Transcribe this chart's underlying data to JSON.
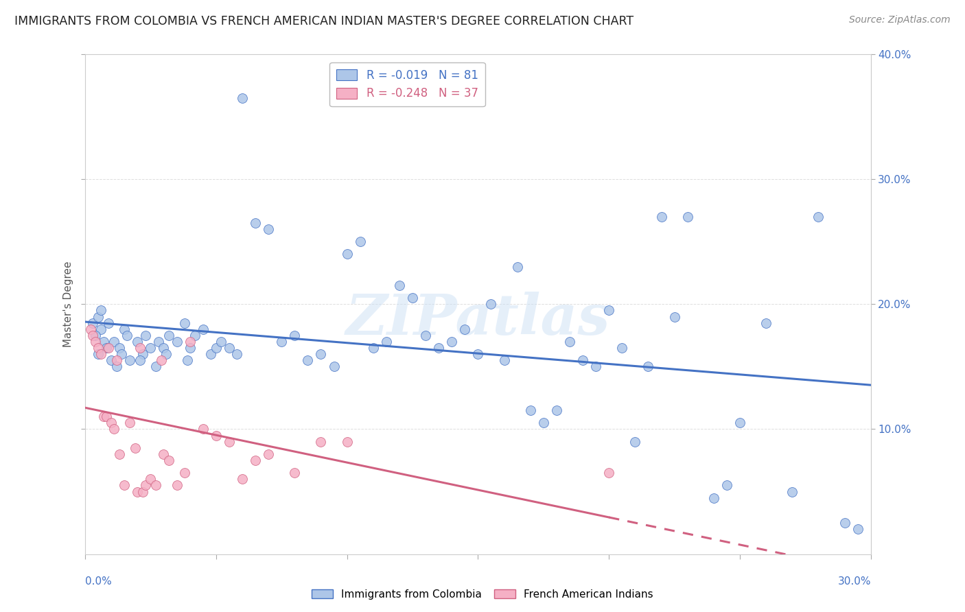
{
  "title": "IMMIGRANTS FROM COLOMBIA VS FRENCH AMERICAN INDIAN MASTER'S DEGREE CORRELATION CHART",
  "source": "Source: ZipAtlas.com",
  "ylabel": "Master's Degree",
  "xlim": [
    0.0,
    30.0
  ],
  "ylim": [
    0.0,
    40.0
  ],
  "yticks": [
    10.0,
    20.0,
    30.0,
    40.0
  ],
  "xticks": [
    0.0,
    5.0,
    10.0,
    15.0,
    20.0,
    25.0,
    30.0
  ],
  "watermark": "ZIPatlas",
  "legend1_label": "Immigrants from Colombia",
  "legend2_label": "French American Indians",
  "r1": -0.019,
  "n1": 81,
  "r2": -0.248,
  "n2": 37,
  "blue_fill": "#adc6e8",
  "pink_fill": "#f5b0c5",
  "blue_edge": "#4472c4",
  "pink_edge": "#d06080",
  "blue_scatter": [
    [
      0.3,
      18.5
    ],
    [
      0.5,
      19.0
    ],
    [
      0.6,
      18.0
    ],
    [
      0.4,
      17.5
    ],
    [
      0.7,
      17.0
    ],
    [
      0.8,
      16.5
    ],
    [
      0.9,
      18.5
    ],
    [
      1.0,
      15.5
    ],
    [
      0.5,
      16.0
    ],
    [
      0.6,
      19.5
    ],
    [
      1.1,
      17.0
    ],
    [
      1.3,
      16.5
    ],
    [
      1.2,
      15.0
    ],
    [
      1.5,
      18.0
    ],
    [
      1.4,
      16.0
    ],
    [
      1.7,
      15.5
    ],
    [
      1.6,
      17.5
    ],
    [
      2.0,
      17.0
    ],
    [
      2.2,
      16.0
    ],
    [
      2.1,
      15.5
    ],
    [
      2.3,
      17.5
    ],
    [
      2.5,
      16.5
    ],
    [
      2.7,
      15.0
    ],
    [
      2.8,
      17.0
    ],
    [
      3.0,
      16.5
    ],
    [
      3.2,
      17.5
    ],
    [
      3.1,
      16.0
    ],
    [
      3.5,
      17.0
    ],
    [
      3.8,
      18.5
    ],
    [
      4.0,
      16.5
    ],
    [
      3.9,
      15.5
    ],
    [
      4.2,
      17.5
    ],
    [
      4.5,
      18.0
    ],
    [
      4.8,
      16.0
    ],
    [
      5.0,
      16.5
    ],
    [
      5.2,
      17.0
    ],
    [
      5.5,
      16.5
    ],
    [
      5.8,
      16.0
    ],
    [
      6.0,
      36.5
    ],
    [
      6.5,
      26.5
    ],
    [
      7.0,
      26.0
    ],
    [
      7.5,
      17.0
    ],
    [
      8.0,
      17.5
    ],
    [
      8.5,
      15.5
    ],
    [
      9.0,
      16.0
    ],
    [
      9.5,
      15.0
    ],
    [
      10.0,
      24.0
    ],
    [
      10.5,
      25.0
    ],
    [
      11.0,
      16.5
    ],
    [
      11.5,
      17.0
    ],
    [
      12.0,
      21.5
    ],
    [
      12.5,
      20.5
    ],
    [
      13.0,
      17.5
    ],
    [
      13.5,
      16.5
    ],
    [
      14.0,
      17.0
    ],
    [
      14.5,
      18.0
    ],
    [
      15.0,
      16.0
    ],
    [
      15.5,
      20.0
    ],
    [
      16.0,
      15.5
    ],
    [
      16.5,
      23.0
    ],
    [
      17.0,
      11.5
    ],
    [
      17.5,
      10.5
    ],
    [
      18.0,
      11.5
    ],
    [
      18.5,
      17.0
    ],
    [
      19.0,
      15.5
    ],
    [
      19.5,
      15.0
    ],
    [
      20.0,
      19.5
    ],
    [
      20.5,
      16.5
    ],
    [
      21.0,
      9.0
    ],
    [
      21.5,
      15.0
    ],
    [
      22.0,
      27.0
    ],
    [
      22.5,
      19.0
    ],
    [
      23.0,
      27.0
    ],
    [
      24.0,
      4.5
    ],
    [
      24.5,
      5.5
    ],
    [
      25.0,
      10.5
    ],
    [
      26.0,
      18.5
    ],
    [
      27.0,
      5.0
    ],
    [
      28.0,
      27.0
    ],
    [
      29.0,
      2.5
    ],
    [
      29.5,
      2.0
    ]
  ],
  "pink_scatter": [
    [
      0.2,
      18.0
    ],
    [
      0.3,
      17.5
    ],
    [
      0.4,
      17.0
    ],
    [
      0.5,
      16.5
    ],
    [
      0.6,
      16.0
    ],
    [
      0.7,
      11.0
    ],
    [
      0.8,
      11.0
    ],
    [
      0.9,
      16.5
    ],
    [
      1.0,
      10.5
    ],
    [
      1.1,
      10.0
    ],
    [
      1.2,
      15.5
    ],
    [
      1.3,
      8.0
    ],
    [
      1.5,
      5.5
    ],
    [
      1.7,
      10.5
    ],
    [
      1.9,
      8.5
    ],
    [
      2.0,
      5.0
    ],
    [
      2.1,
      16.5
    ],
    [
      2.2,
      5.0
    ],
    [
      2.3,
      5.5
    ],
    [
      2.5,
      6.0
    ],
    [
      2.7,
      5.5
    ],
    [
      2.9,
      15.5
    ],
    [
      3.0,
      8.0
    ],
    [
      3.2,
      7.5
    ],
    [
      3.5,
      5.5
    ],
    [
      3.8,
      6.5
    ],
    [
      4.0,
      17.0
    ],
    [
      4.5,
      10.0
    ],
    [
      5.0,
      9.5
    ],
    [
      5.5,
      9.0
    ],
    [
      6.0,
      6.0
    ],
    [
      6.5,
      7.5
    ],
    [
      7.0,
      8.0
    ],
    [
      8.0,
      6.5
    ],
    [
      9.0,
      9.0
    ],
    [
      10.0,
      9.0
    ],
    [
      20.0,
      6.5
    ]
  ]
}
